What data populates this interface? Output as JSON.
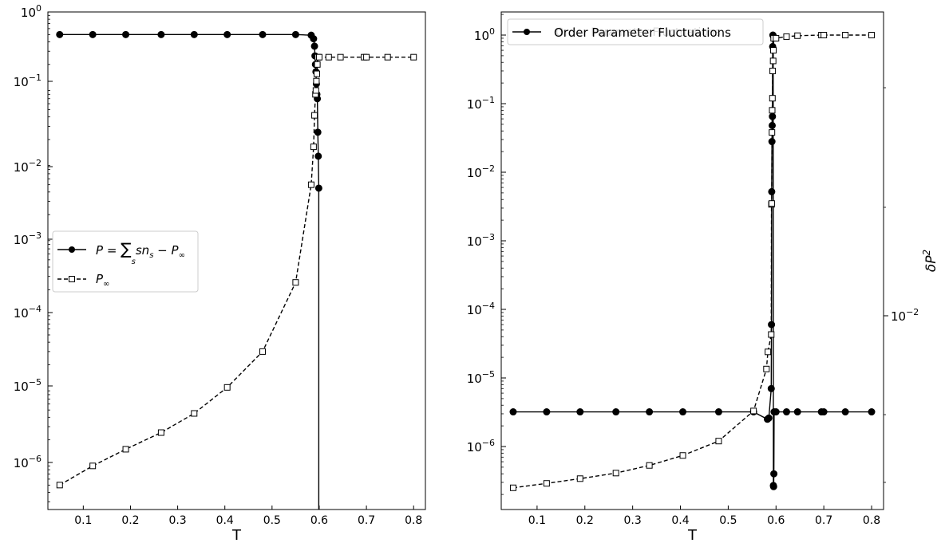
{
  "chart_data": [
    {
      "type": "line",
      "xlabel": "T",
      "ylabel": "",
      "xlim": [
        0.025,
        0.825
      ],
      "ylim": [
        2.5e-07,
        1.0
      ],
      "yscale": "log",
      "xticks": [
        "0.1",
        "0.2",
        "0.3",
        "0.4",
        "0.5",
        "0.6",
        "0.7",
        "0.8"
      ],
      "yticks": [
        {
          "base": "10",
          "exp": "0"
        },
        {
          "base": "10",
          "exp": "−1"
        },
        {
          "base": "10",
          "exp": "−2"
        },
        {
          "base": "10",
          "exp": "−3"
        },
        {
          "base": "10",
          "exp": "−4"
        },
        {
          "base": "10",
          "exp": "−5"
        },
        {
          "base": "10",
          "exp": "−6"
        }
      ],
      "legend_position": "center-left",
      "grid": false,
      "series": [
        {
          "name": "P = Σ_s s n_s − P_∞",
          "legend_label": {
            "main": "P = ",
            "sum": "∑",
            "sub": "s",
            "body": "sn",
            "body_sub": "s",
            "tail": " − P",
            "tail_sub": "∞"
          },
          "marker": "filled-circle",
          "linestyle": "solid",
          "color": "#000000",
          "x": [
            0.05,
            0.12,
            0.19,
            0.265,
            0.335,
            0.405,
            0.48,
            0.55,
            0.583,
            0.588,
            0.59,
            0.591,
            0.592,
            0.593,
            0.594,
            0.595,
            0.596,
            0.597,
            0.598,
            0.599
          ],
          "y": [
            0.5,
            0.5,
            0.5,
            0.5,
            0.5,
            0.5,
            0.5,
            0.5,
            0.49,
            0.44,
            0.35,
            0.26,
            0.2,
            0.16,
            0.11,
            0.08,
            0.07,
            0.025,
            0.012,
            0.0045
          ]
        },
        {
          "name": "P_∞",
          "legend_label": {
            "main": "P",
            "sub": "∞"
          },
          "marker": "open-square",
          "linestyle": "dashed",
          "color": "#000000",
          "x": [
            0.05,
            0.12,
            0.19,
            0.265,
            0.335,
            0.405,
            0.48,
            0.55,
            0.583,
            0.588,
            0.59,
            0.592,
            0.593,
            0.594,
            0.595,
            0.596,
            0.597,
            0.6,
            0.62,
            0.645,
            0.695,
            0.7,
            0.745,
            0.8
          ],
          "y": [
            5e-07,
            9e-07,
            1.5e-06,
            2.5e-06,
            4.5e-06,
            1e-05,
            3e-05,
            0.00025,
            0.005,
            0.016,
            0.042,
            0.08,
            0.09,
            0.12,
            0.15,
            0.2,
            0.25,
            0.25,
            0.25,
            0.25,
            0.25,
            0.25,
            0.25,
            0.25
          ]
        }
      ]
    },
    {
      "type": "line",
      "xlabel": "T",
      "ylabel": "",
      "ylabel_right": {
        "main": "δP",
        "sup": "2"
      },
      "xlim": [
        0.025,
        0.825
      ],
      "ylim": [
        2e-07,
        2.0
      ],
      "yscale": "log",
      "xticks": [
        "0.1",
        "0.2",
        "0.3",
        "0.4",
        "0.5",
        "0.6",
        "0.7",
        "0.8"
      ],
      "yticks": [
        {
          "base": "10",
          "exp": "0"
        },
        {
          "base": "10",
          "exp": "−1"
        },
        {
          "base": "10",
          "exp": "−2"
        },
        {
          "base": "10",
          "exp": "−3"
        },
        {
          "base": "10",
          "exp": "−4"
        },
        {
          "base": "10",
          "exp": "−5"
        },
        {
          "base": "10",
          "exp": "−6"
        }
      ],
      "yticks_right": [
        {
          "base": "10",
          "exp": "−2"
        }
      ],
      "legend_position": "top-left",
      "legend_ghost_text": "Order Parameter Fluctuations",
      "grid": false,
      "series": [
        {
          "name": "Order Parameter Fluctuations",
          "marker": "filled-circle",
          "linestyle": "solid",
          "color": "#000000",
          "x": [
            0.05,
            0.12,
            0.19,
            0.265,
            0.335,
            0.405,
            0.48,
            0.553,
            0.582,
            0.585,
            0.59,
            0.5905,
            0.591,
            0.5915,
            0.592,
            0.5925,
            0.593,
            0.5935,
            0.594,
            0.5945,
            0.595,
            0.5955,
            0.596,
            0.6,
            0.622,
            0.645,
            0.695,
            0.7,
            0.745,
            0.8
          ],
          "y": [
            3.2e-06,
            3.2e-06,
            3.2e-06,
            3.2e-06,
            3.2e-06,
            3.2e-06,
            3.2e-06,
            3.2e-06,
            2.5e-06,
            2.6e-06,
            7e-06,
            6e-05,
            0.0052,
            0.028,
            0.048,
            0.065,
            0.68,
            1.0,
            0.98,
            2.7e-07,
            2.6e-07,
            4e-07,
            3.2e-06,
            3.2e-06,
            3.2e-06,
            3.2e-06,
            3.2e-06,
            3.2e-06,
            3.2e-06,
            3.2e-06
          ]
        },
        {
          "name": "",
          "marker": "open-square",
          "linestyle": "dashed",
          "color": "#000000",
          "x": [
            0.05,
            0.12,
            0.19,
            0.265,
            0.335,
            0.405,
            0.48,
            0.553,
            0.58,
            0.583,
            0.59,
            0.5905,
            0.591,
            0.5915,
            0.592,
            0.5925,
            0.593,
            0.594,
            0.5945,
            0.595,
            0.6,
            0.622,
            0.645,
            0.695,
            0.7,
            0.745,
            0.8
          ],
          "y": [
            2.5e-07,
            2.9e-07,
            3.4e-07,
            4.1e-07,
            5.3e-07,
            7.4e-07,
            1.2e-06,
            3.3e-06,
            1.35e-05,
            2.4e-05,
            4.3e-05,
            0.0034,
            0.0035,
            0.038,
            0.08,
            0.12,
            0.3,
            0.42,
            0.6,
            0.9,
            0.9,
            0.95,
            0.98,
            1.0,
            1.0,
            1.0,
            1.0
          ]
        }
      ]
    }
  ]
}
